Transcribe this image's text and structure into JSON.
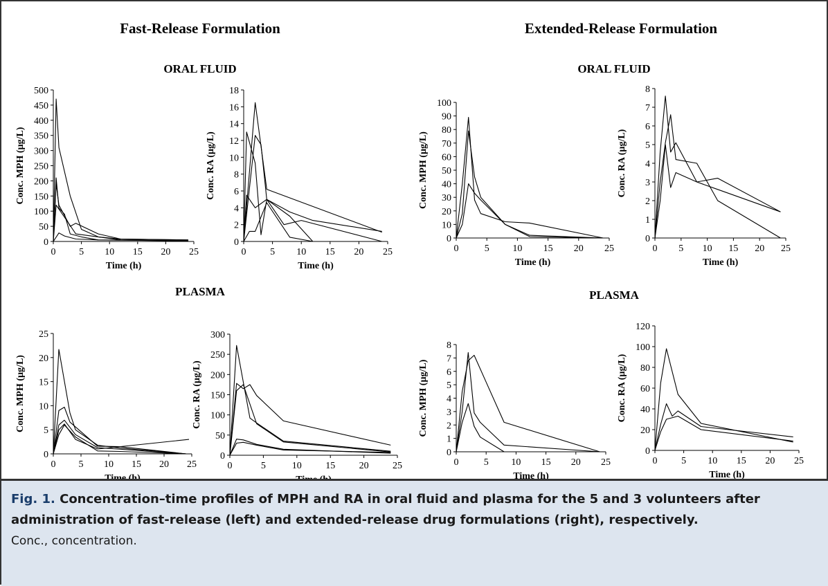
{
  "headers": {
    "left": "Fast-Release Formulation",
    "right": "Extended-Release Formulation",
    "oral_fluid": "ORAL FLUID",
    "plasma": "PLASMA"
  },
  "caption": {
    "label": "Fig. 1.",
    "text": "Concentration–time profiles of MPH and RA in oral fluid and plasma for the 5 and 3 volunteers after administration of fast-release (left) and extended-release drug formulations (right), respectively.",
    "note": "Conc., concentration."
  },
  "chart_data": [
    {
      "id": "fast-oral-mph",
      "type": "line",
      "xlabel": "Time (h)",
      "ylabel": "Conc. MPH (µg/L)",
      "xlim": [
        0,
        25
      ],
      "ylim": [
        0,
        500
      ],
      "xticks": [
        0,
        5,
        10,
        15,
        20,
        25
      ],
      "yticks": [
        0,
        50,
        100,
        150,
        200,
        250,
        300,
        350,
        400,
        450,
        500
      ],
      "series": [
        {
          "x": [
            0,
            0.5,
            1,
            3,
            5,
            8,
            12,
            24
          ],
          "y": [
            0,
            470,
            310,
            150,
            40,
            15,
            5,
            3
          ]
        },
        {
          "x": [
            0,
            0.5,
            1,
            2,
            3,
            5,
            8,
            24
          ],
          "y": [
            0,
            210,
            110,
            90,
            25,
            15,
            5,
            2
          ]
        },
        {
          "x": [
            0,
            0.5,
            1,
            3,
            4,
            8,
            12,
            24
          ],
          "y": [
            0,
            190,
            120,
            50,
            60,
            25,
            8,
            5
          ]
        },
        {
          "x": [
            0,
            0.5,
            2,
            4,
            8,
            12,
            24
          ],
          "y": [
            0,
            120,
            80,
            25,
            15,
            8,
            5
          ]
        },
        {
          "x": [
            0,
            1,
            2,
            4,
            8,
            24
          ],
          "y": [
            0,
            28,
            18,
            8,
            5,
            2
          ]
        }
      ]
    },
    {
      "id": "fast-oral-ra",
      "type": "line",
      "xlabel": "Time (h)",
      "ylabel": "Conc. RA (µg/L)",
      "xlim": [
        0,
        25
      ],
      "ylim": [
        0,
        18
      ],
      "xticks": [
        0,
        5,
        10,
        15,
        20,
        25
      ],
      "yticks": [
        0,
        2,
        4,
        6,
        8,
        10,
        12,
        14,
        16,
        18
      ],
      "series": [
        {
          "x": [
            0,
            2,
            4,
            24
          ],
          "y": [
            0,
            16.5,
            6.2,
            1.1
          ]
        },
        {
          "x": [
            0,
            2,
            3,
            4,
            8,
            12,
            24
          ],
          "y": [
            0,
            12.6,
            11.5,
            5.0,
            3.5,
            2.5,
            1.2
          ]
        },
        {
          "x": [
            0,
            0.5,
            2,
            3,
            4,
            8,
            12
          ],
          "y": [
            0,
            13.0,
            9.3,
            0.8,
            5.0,
            3.0,
            0
          ]
        },
        {
          "x": [
            0,
            0.5,
            2,
            4,
            7,
            10,
            24
          ],
          "y": [
            0,
            5.5,
            4.0,
            5.0,
            2.0,
            2.5,
            0
          ]
        },
        {
          "x": [
            0,
            1,
            2,
            4,
            8,
            12
          ],
          "y": [
            0,
            1.2,
            1.2,
            4.6,
            0.5,
            0
          ]
        }
      ]
    },
    {
      "id": "ext-oral-mph",
      "type": "line",
      "xlabel": "Time (h)",
      "ylabel": "Conc. MPH (µg/L)",
      "xlim": [
        0,
        25
      ],
      "ylim": [
        0,
        100
      ],
      "xticks": [
        0,
        5,
        10,
        15,
        20,
        25
      ],
      "yticks": [
        0,
        10,
        20,
        30,
        40,
        50,
        60,
        70,
        80,
        90,
        100
      ],
      "series": [
        {
          "x": [
            0,
            1,
            2,
            3,
            4,
            8,
            12,
            24
          ],
          "y": [
            0,
            40,
            89,
            28,
            18,
            12,
            11,
            0
          ]
        },
        {
          "x": [
            0,
            1,
            2,
            3,
            4,
            8,
            12,
            24
          ],
          "y": [
            0,
            18,
            79,
            45,
            30,
            10,
            1,
            0
          ]
        },
        {
          "x": [
            0,
            1,
            2,
            3,
            4,
            8,
            12,
            24
          ],
          "y": [
            0,
            10,
            40,
            33,
            28,
            10,
            2,
            0
          ]
        }
      ]
    },
    {
      "id": "ext-oral-ra",
      "type": "line",
      "xlabel": "Time (h)",
      "ylabel": "Conc. RA (µg/L)",
      "xlim": [
        0,
        25
      ],
      "ylim": [
        0,
        8
      ],
      "xticks": [
        0,
        5,
        10,
        15,
        20,
        25
      ],
      "yticks": [
        0,
        1,
        2,
        3,
        4,
        5,
        6,
        7,
        8
      ],
      "series": [
        {
          "x": [
            0,
            1,
            2,
            3,
            4,
            8,
            12,
            24
          ],
          "y": [
            0,
            4.6,
            7.6,
            4.6,
            5.1,
            3.0,
            3.2,
            1.4
          ]
        },
        {
          "x": [
            0,
            1,
            2,
            3,
            4,
            8,
            12,
            24
          ],
          "y": [
            0,
            3.0,
            5.1,
            6.6,
            4.2,
            4.0,
            2.0,
            0
          ]
        },
        {
          "x": [
            0,
            1,
            2,
            3,
            4,
            8,
            12,
            24
          ],
          "y": [
            0,
            2.0,
            5.0,
            2.7,
            3.5,
            3.0,
            2.6,
            1.4
          ]
        }
      ]
    },
    {
      "id": "fast-plasma-mph",
      "type": "line",
      "xlabel": "Time (h)",
      "ylabel": "Conc. MPH (µg/L)",
      "xlim": [
        0,
        25
      ],
      "ylim": [
        0,
        25
      ],
      "xticks": [
        0,
        5,
        10,
        15,
        20,
        25
      ],
      "yticks": [
        0,
        5,
        10,
        15,
        20,
        25
      ],
      "series": [
        {
          "x": [
            0,
            1,
            3,
            4,
            8,
            12,
            24
          ],
          "y": [
            0,
            21.7,
            8.5,
            5.0,
            1.8,
            1.2,
            0
          ]
        },
        {
          "x": [
            0,
            1,
            2,
            3,
            8,
            12,
            24
          ],
          "y": [
            0,
            9.0,
            9.7,
            6.6,
            1.6,
            1.5,
            0
          ]
        },
        {
          "x": [
            0,
            1,
            2,
            4,
            8,
            24
          ],
          "y": [
            0,
            6.0,
            7.0,
            4.0,
            1.3,
            0
          ]
        },
        {
          "x": [
            0,
            1,
            2,
            4,
            8,
            24.5
          ],
          "y": [
            0,
            5.0,
            6.2,
            3.0,
            1.0,
            3.0
          ]
        },
        {
          "x": [
            0,
            1,
            2,
            4,
            8,
            12,
            24
          ],
          "y": [
            0,
            4.0,
            6.0,
            3.5,
            0.6,
            0.5,
            0
          ]
        }
      ]
    },
    {
      "id": "fast-plasma-ra",
      "type": "line",
      "xlabel": "Time (h)",
      "ylabel": "Conc. RA (µg/L)",
      "xlim": [
        0,
        25
      ],
      "ylim": [
        0,
        300
      ],
      "xticks": [
        0,
        5,
        10,
        15,
        20,
        25
      ],
      "yticks": [
        0,
        50,
        100,
        150,
        200,
        250,
        300
      ],
      "series": [
        {
          "x": [
            0,
            1,
            3,
            4,
            8,
            24
          ],
          "y": [
            0,
            272,
            92,
            80,
            35,
            10
          ]
        },
        {
          "x": [
            0,
            1,
            2,
            3,
            4,
            8,
            24
          ],
          "y": [
            0,
            178,
            165,
            175,
            148,
            85,
            25
          ]
        },
        {
          "x": [
            0,
            1,
            2,
            4,
            8,
            24
          ],
          "y": [
            0,
            160,
            175,
            78,
            33,
            8
          ]
        },
        {
          "x": [
            0,
            1,
            2,
            4,
            8,
            24
          ],
          "y": [
            0,
            40,
            38,
            27,
            15,
            5
          ]
        },
        {
          "x": [
            0,
            1,
            2,
            4,
            8,
            24
          ],
          "y": [
            0,
            30,
            32,
            25,
            13,
            7
          ]
        }
      ]
    },
    {
      "id": "ext-plasma-mph",
      "type": "line",
      "xlabel": "Time (h)",
      "ylabel": "Conc. MPH (µg/L)",
      "xlim": [
        0,
        25
      ],
      "ylim": [
        0,
        8
      ],
      "xticks": [
        0,
        5,
        10,
        15,
        20,
        25
      ],
      "yticks": [
        0,
        1,
        2,
        3,
        4,
        5,
        6,
        7,
        8
      ],
      "series": [
        {
          "x": [
            0,
            1,
            2,
            3,
            5,
            8,
            24
          ],
          "y": [
            0,
            4.5,
            6.8,
            7.2,
            5.2,
            2.2,
            0
          ]
        },
        {
          "x": [
            0,
            1,
            2,
            3,
            4,
            8,
            24
          ],
          "y": [
            0,
            3.0,
            7.4,
            2.9,
            2.2,
            0.5,
            0
          ]
        },
        {
          "x": [
            0,
            1,
            2,
            3,
            4,
            8
          ],
          "y": [
            0,
            2.2,
            3.6,
            1.9,
            1.1,
            0
          ]
        }
      ]
    },
    {
      "id": "ext-plasma-ra",
      "type": "line",
      "xlabel": "Time (h)",
      "ylabel": "Conc. RA (µg/L)",
      "xlim": [
        0,
        25
      ],
      "ylim": [
        0,
        120
      ],
      "xticks": [
        0,
        5,
        10,
        15,
        20,
        25
      ],
      "yticks": [
        0,
        20,
        40,
        60,
        80,
        100,
        120
      ],
      "series": [
        {
          "x": [
            0,
            1,
            2,
            4,
            8,
            24
          ],
          "y": [
            0,
            65,
            98,
            54,
            26,
            8
          ]
        },
        {
          "x": [
            0,
            1,
            2,
            3,
            4,
            8,
            24
          ],
          "y": [
            0,
            25,
            45,
            33,
            38,
            23,
            13
          ]
        },
        {
          "x": [
            0,
            1,
            2,
            4,
            8,
            24
          ],
          "y": [
            0,
            18,
            30,
            33,
            20,
            9
          ]
        }
      ]
    }
  ]
}
